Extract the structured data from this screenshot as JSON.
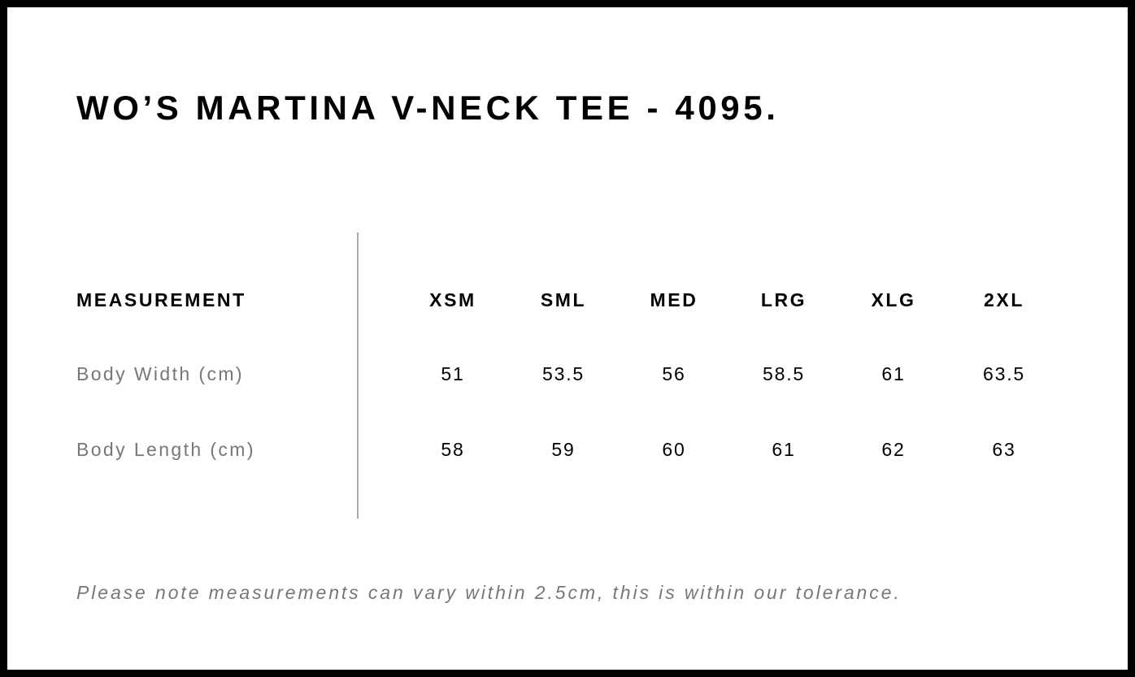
{
  "title": "WO’S MARTINA V-NECK TEE - 4095.",
  "table": {
    "header_label": "MEASUREMENT",
    "sizes": [
      "XSM",
      "SML",
      "MED",
      "LRG",
      "XLG",
      "2XL"
    ],
    "rows": [
      {
        "label": "Body Width (cm)",
        "values": [
          "51",
          "53.5",
          "56",
          "58.5",
          "61",
          "63.5"
        ]
      },
      {
        "label": "Body Length (cm)",
        "values": [
          "58",
          "59",
          "60",
          "61",
          "62",
          "63"
        ]
      }
    ]
  },
  "note": "Please note measurements can vary within 2.5cm, this is within our tolerance.",
  "colors": {
    "border": "#000000",
    "label_gray": "#777777",
    "divider": "#a8a8a8"
  }
}
